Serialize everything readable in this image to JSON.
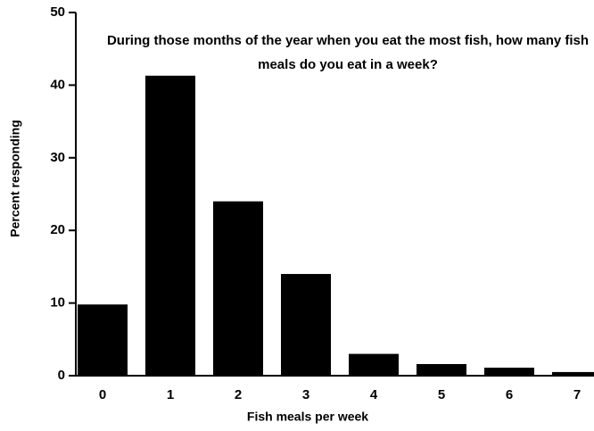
{
  "chart_data": {
    "type": "bar",
    "title": "During those months of the year when you eat the most fish, how many fish meals do you eat in a week?",
    "x_label": "Fish meals per week",
    "y_label": "Percent responding",
    "categories": [
      "0",
      "1",
      "2",
      "3",
      "4",
      "5",
      "6",
      "7"
    ],
    "values": [
      9.8,
      41.3,
      24,
      14,
      3,
      1.6,
      1.1,
      0.5
    ],
    "color": "#000000",
    "ylim": [
      0,
      50
    ],
    "yticks": [
      0,
      10,
      20,
      30,
      40,
      50
    ],
    "grid": false
  }
}
